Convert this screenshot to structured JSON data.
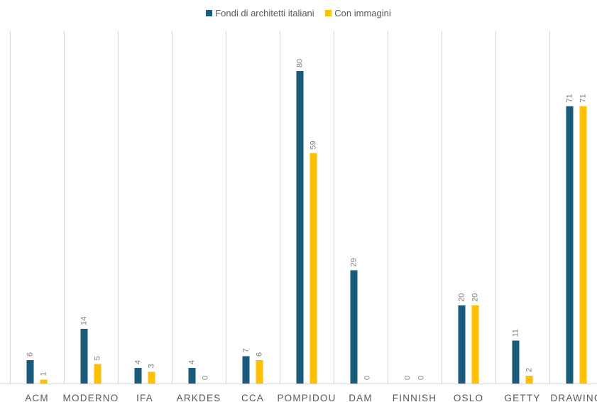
{
  "chart_data": {
    "type": "bar",
    "title": "",
    "xlabel": "",
    "ylabel": "",
    "ylim": [
      0,
      80
    ],
    "grid": "vertical category separators",
    "legend_position": "top",
    "categories": [
      "ACM",
      "MODERNO",
      "IFA",
      "ARKDES",
      "CCA",
      "POMPIDOU",
      "DAM",
      "FINNISH",
      "OSLO",
      "GETTY",
      "DRAWING"
    ],
    "series": [
      {
        "name": "Fondi di architetti italiani",
        "color": "#1a5a7a",
        "values": [
          6,
          14,
          4,
          4,
          7,
          80,
          29,
          0,
          20,
          11,
          71
        ]
      },
      {
        "name": "Con immagini",
        "color": "#ffc000",
        "values": [
          1,
          5,
          3,
          0,
          6,
          59,
          0,
          0,
          20,
          2,
          71
        ]
      }
    ]
  }
}
